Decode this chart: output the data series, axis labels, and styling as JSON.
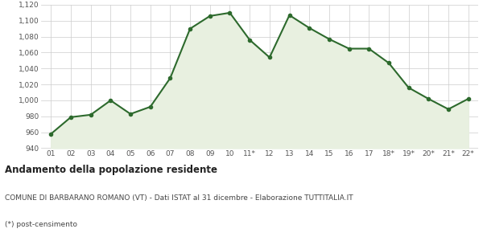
{
  "x_labels": [
    "01",
    "02",
    "03",
    "04",
    "05",
    "06",
    "07",
    "08",
    "09",
    "10",
    "11*",
    "12",
    "13",
    "14",
    "15",
    "16",
    "17",
    "18*",
    "19*",
    "20*",
    "21*",
    "22*"
  ],
  "y_values": [
    958,
    979,
    982,
    1000,
    983,
    992,
    1028,
    1090,
    1106,
    1110,
    1076,
    1054,
    1107,
    1091,
    1077,
    1065,
    1065,
    1047,
    1016,
    1002,
    989,
    1002
  ],
  "line_color": "#2d6a2d",
  "fill_color": "#e8f0e0",
  "marker": "o",
  "marker_size": 3,
  "line_width": 1.5,
  "ylim": [
    940,
    1120
  ],
  "ytick_vals": [
    940,
    960,
    980,
    1000,
    1020,
    1040,
    1060,
    1080,
    1100,
    1120
  ],
  "ytick_labels": [
    "940",
    "960",
    "980",
    "1,000",
    "1,020",
    "1,040",
    "1,060",
    "1,080",
    "1,100",
    "1,120"
  ],
  "grid_color": "#cccccc",
  "bg_color": "#ffffff",
  "title": "Andamento della popolazione residente",
  "subtitle": "COMUNE DI BARBARANO ROMANO (VT) - Dati ISTAT al 31 dicembre - Elaborazione TUTTITALIA.IT",
  "footnote": "(*) post-censimento",
  "title_fontsize": 8.5,
  "subtitle_fontsize": 6.5,
  "footnote_fontsize": 6.5,
  "tick_fontsize": 6.5
}
